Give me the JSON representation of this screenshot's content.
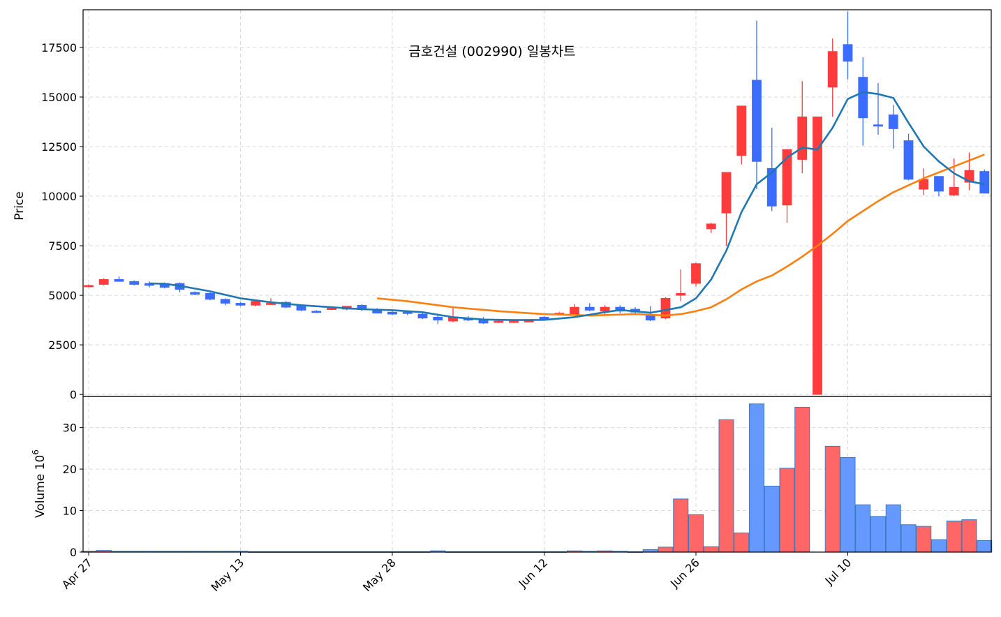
{
  "chart_data": {
    "type": "candlestick",
    "title": "금호건설 (002990) 일봉차트",
    "price_panel": {
      "ylabel": "Price",
      "ylim": [
        -100,
        19400
      ],
      "yticks": [
        0,
        2500,
        5000,
        7500,
        10000,
        12500,
        15000,
        17500
      ],
      "grid": true
    },
    "volume_panel": {
      "ylabel": "Volume",
      "ylabel_exponent": "6",
      "ylim": [
        0,
        37.5
      ],
      "yticks": [
        0,
        10,
        20,
        30
      ],
      "grid": true
    },
    "x_tick_labels": [
      "Apr 27",
      "May 13",
      "May 28",
      "Jun 12",
      "Jun 26",
      "Jul 10"
    ],
    "colors": {
      "up": "#ff3b3b",
      "down": "#3a6dff",
      "volume_up": "#ff6666",
      "volume_down": "#6699ff",
      "volume_edge": "#3a7bbf",
      "ma_short": "#1f77b4",
      "ma_long": "#ff7f0e"
    },
    "candles": [
      {
        "x": 0,
        "o": 5450,
        "h": 5550,
        "l": 5400,
        "c": 5500,
        "v": 0.2
      },
      {
        "x": 1,
        "o": 5550,
        "h": 5850,
        "l": 5500,
        "c": 5800,
        "v": 0.4
      },
      {
        "x": 2,
        "o": 5800,
        "h": 5950,
        "l": 5700,
        "c": 5700,
        "v": 0.2
      },
      {
        "x": 3,
        "o": 5700,
        "h": 5750,
        "l": 5500,
        "c": 5550,
        "v": 0.2
      },
      {
        "x": 4,
        "o": 5600,
        "h": 5700,
        "l": 5400,
        "c": 5500,
        "v": 0.2
      },
      {
        "x": 5,
        "o": 5600,
        "h": 5650,
        "l": 5350,
        "c": 5400,
        "v": 0.2
      },
      {
        "x": 6,
        "o": 5600,
        "h": 5650,
        "l": 5150,
        "c": 5300,
        "v": 0.2
      },
      {
        "x": 7,
        "o": 5150,
        "h": 5200,
        "l": 5000,
        "c": 5050,
        "v": 0.2
      },
      {
        "x": 8,
        "o": 5100,
        "h": 5150,
        "l": 4750,
        "c": 4800,
        "v": 0.2
      },
      {
        "x": 9,
        "o": 4800,
        "h": 4850,
        "l": 4500,
        "c": 4600,
        "v": 0.2
      },
      {
        "x": 10,
        "o": 4600,
        "h": 4650,
        "l": 4450,
        "c": 4500,
        "v": 0.2
      },
      {
        "x": 11,
        "o": 4500,
        "h": 4700,
        "l": 4450,
        "c": 4700,
        "v": 0.1
      },
      {
        "x": 12,
        "o": 4600,
        "h": 4850,
        "l": 4550,
        "c": 4600,
        "v": 0.1
      },
      {
        "x": 13,
        "o": 4650,
        "h": 4700,
        "l": 4350,
        "c": 4400,
        "v": 0.1
      },
      {
        "x": 14,
        "o": 4500,
        "h": 4550,
        "l": 4200,
        "c": 4250,
        "v": 0.1
      },
      {
        "x": 15,
        "o": 4200,
        "h": 4250,
        "l": 4100,
        "c": 4150,
        "v": 0.1
      },
      {
        "x": 16,
        "o": 4300,
        "h": 4400,
        "l": 4250,
        "c": 4350,
        "v": 0.1
      },
      {
        "x": 17,
        "o": 4300,
        "h": 4450,
        "l": 4250,
        "c": 4450,
        "v": 0.1
      },
      {
        "x": 18,
        "o": 4500,
        "h": 4550,
        "l": 4200,
        "c": 4300,
        "v": 0.1
      },
      {
        "x": 19,
        "o": 4300,
        "h": 4350,
        "l": 4100,
        "c": 4100,
        "v": 0.1
      },
      {
        "x": 20,
        "o": 4150,
        "h": 4250,
        "l": 4000,
        "c": 4050,
        "v": 0.1
      },
      {
        "x": 21,
        "o": 4150,
        "h": 4200,
        "l": 4000,
        "c": 4100,
        "v": 0.1
      },
      {
        "x": 22,
        "o": 4050,
        "h": 4150,
        "l": 3800,
        "c": 3850,
        "v": 0.1
      },
      {
        "x": 23,
        "o": 3900,
        "h": 4050,
        "l": 3550,
        "c": 3750,
        "v": 0.3
      },
      {
        "x": 24,
        "o": 3700,
        "h": 4350,
        "l": 3650,
        "c": 3900,
        "v": 0.1
      },
      {
        "x": 25,
        "o": 3850,
        "h": 3950,
        "l": 3700,
        "c": 3750,
        "v": 0.1
      },
      {
        "x": 26,
        "o": 3750,
        "h": 3900,
        "l": 3550,
        "c": 3600,
        "v": 0.1
      },
      {
        "x": 27,
        "o": 3650,
        "h": 3800,
        "l": 3600,
        "c": 3700,
        "v": 0.1
      },
      {
        "x": 28,
        "o": 3650,
        "h": 3800,
        "l": 3600,
        "c": 3700,
        "v": 0.1
      },
      {
        "x": 29,
        "o": 3700,
        "h": 3750,
        "l": 3650,
        "c": 3720,
        "v": 0.1
      },
      {
        "x": 30,
        "o": 3900,
        "h": 3950,
        "l": 3750,
        "c": 3800,
        "v": 0.1
      },
      {
        "x": 31,
        "o": 4050,
        "h": 4150,
        "l": 4000,
        "c": 4100,
        "v": 0.1
      },
      {
        "x": 32,
        "o": 4050,
        "h": 4550,
        "l": 4000,
        "c": 4400,
        "v": 0.3
      },
      {
        "x": 33,
        "o": 4400,
        "h": 4600,
        "l": 4200,
        "c": 4250,
        "v": 0.2
      },
      {
        "x": 34,
        "o": 4200,
        "h": 4500,
        "l": 4050,
        "c": 4400,
        "v": 0.3
      },
      {
        "x": 35,
        "o": 4400,
        "h": 4500,
        "l": 4100,
        "c": 4200,
        "v": 0.2
      },
      {
        "x": 36,
        "o": 4300,
        "h": 4400,
        "l": 4000,
        "c": 4150,
        "v": 0.1
      },
      {
        "x": 37,
        "o": 4000,
        "h": 4450,
        "l": 3700,
        "c": 3750,
        "v": 0.6
      },
      {
        "x": 38,
        "o": 3850,
        "h": 4900,
        "l": 3800,
        "c": 4850,
        "v": 1.2
      },
      {
        "x": 39,
        "o": 5000,
        "h": 6300,
        "l": 4700,
        "c": 5100,
        "v": 12.8
      },
      {
        "x": 40,
        "o": 5600,
        "h": 6650,
        "l": 5450,
        "c": 6600,
        "v": 9.0
      },
      {
        "x": 41,
        "o": 8350,
        "h": 8650,
        "l": 8150,
        "c": 8600,
        "v": 1.3
      },
      {
        "x": 42,
        "o": 9150,
        "h": 11200,
        "l": 7500,
        "c": 11200,
        "v": 31.9
      },
      {
        "x": 43,
        "o": 12050,
        "h": 14550,
        "l": 11600,
        "c": 14550,
        "v": 4.6
      },
      {
        "x": 44,
        "o": 15850,
        "h": 18850,
        "l": 10350,
        "c": 11750,
        "v": 35.7
      },
      {
        "x": 45,
        "o": 11400,
        "h": 13450,
        "l": 9250,
        "c": 9500,
        "v": 15.9
      },
      {
        "x": 46,
        "o": 9550,
        "h": 12350,
        "l": 8650,
        "c": 12350,
        "v": 20.2
      },
      {
        "x": 47,
        "o": 11850,
        "h": 15800,
        "l": 11150,
        "c": 14000,
        "v": 34.9
      },
      {
        "x": 48,
        "o": 0,
        "h": 14000,
        "l": 0,
        "c": 14000,
        "v": 0
      },
      {
        "x": 49,
        "o": 15500,
        "h": 17950,
        "l": 14000,
        "c": 17300,
        "v": 25.5
      },
      {
        "x": 50,
        "o": 17650,
        "h": 19300,
        "l": 15900,
        "c": 16800,
        "v": 22.8
      },
      {
        "x": 51,
        "o": 16000,
        "h": 17000,
        "l": 12550,
        "c": 13950,
        "v": 11.4
      },
      {
        "x": 52,
        "o": 13600,
        "h": 15700,
        "l": 13100,
        "c": 13550,
        "v": 8.6
      },
      {
        "x": 53,
        "o": 14100,
        "h": 14600,
        "l": 12400,
        "c": 13400,
        "v": 11.4
      },
      {
        "x": 54,
        "o": 12800,
        "h": 13150,
        "l": 10800,
        "c": 10850,
        "v": 6.6
      },
      {
        "x": 55,
        "o": 10350,
        "h": 11400,
        "l": 10050,
        "c": 10850,
        "v": 6.2
      },
      {
        "x": 56,
        "o": 11000,
        "h": 11000,
        "l": 10000,
        "c": 10250,
        "v": 3.0
      },
      {
        "x": 57,
        "o": 10050,
        "h": 11900,
        "l": 10000,
        "c": 10450,
        "v": 7.5
      },
      {
        "x": 58,
        "o": 10700,
        "h": 12200,
        "l": 10300,
        "c": 11300,
        "v": 7.8
      },
      {
        "x": 59,
        "o": 11250,
        "h": 11350,
        "l": 10150,
        "c": 10150,
        "v": 2.8
      }
    ],
    "ma_short": [
      [
        4,
        5600
      ],
      [
        5,
        5580
      ],
      [
        6,
        5480
      ],
      [
        8,
        5200
      ],
      [
        10,
        4850
      ],
      [
        12,
        4650
      ],
      [
        14,
        4500
      ],
      [
        16,
        4400
      ],
      [
        18,
        4300
      ],
      [
        20,
        4250
      ],
      [
        22,
        4150
      ],
      [
        24,
        3900
      ],
      [
        26,
        3780
      ],
      [
        28,
        3750
      ],
      [
        30,
        3760
      ],
      [
        32,
        3900
      ],
      [
        34,
        4150
      ],
      [
        35,
        4260
      ],
      [
        37,
        4120
      ],
      [
        39,
        4400
      ],
      [
        40,
        4850
      ],
      [
        41,
        5800
      ],
      [
        42,
        7250
      ],
      [
        43,
        9200
      ],
      [
        44,
        10600
      ],
      [
        45,
        11200
      ],
      [
        46,
        11950
      ],
      [
        47,
        12450
      ],
      [
        48,
        12350
      ],
      [
        49,
        13450
      ],
      [
        50,
        14900
      ],
      [
        51,
        15250
      ],
      [
        52,
        15150
      ],
      [
        53,
        14950
      ],
      [
        54,
        13700
      ],
      [
        55,
        12500
      ],
      [
        56,
        11750
      ],
      [
        57,
        11150
      ],
      [
        58,
        10750
      ],
      [
        59,
        10600
      ]
    ],
    "ma_long": [
      [
        19,
        4850
      ],
      [
        21,
        4700
      ],
      [
        24,
        4400
      ],
      [
        27,
        4200
      ],
      [
        30,
        4050
      ],
      [
        33,
        3980
      ],
      [
        36,
        4050
      ],
      [
        38,
        3980
      ],
      [
        39,
        4050
      ],
      [
        40,
        4200
      ],
      [
        41,
        4400
      ],
      [
        42,
        4800
      ],
      [
        43,
        5300
      ],
      [
        44,
        5700
      ],
      [
        45,
        6000
      ],
      [
        46,
        6450
      ],
      [
        47,
        6950
      ],
      [
        48,
        7500
      ],
      [
        49,
        8100
      ],
      [
        50,
        8750
      ],
      [
        51,
        9250
      ],
      [
        52,
        9750
      ],
      [
        53,
        10200
      ],
      [
        54,
        10550
      ],
      [
        55,
        10900
      ],
      [
        56,
        11200
      ],
      [
        57,
        11500
      ],
      [
        58,
        11800
      ],
      [
        59,
        12100
      ]
    ]
  }
}
